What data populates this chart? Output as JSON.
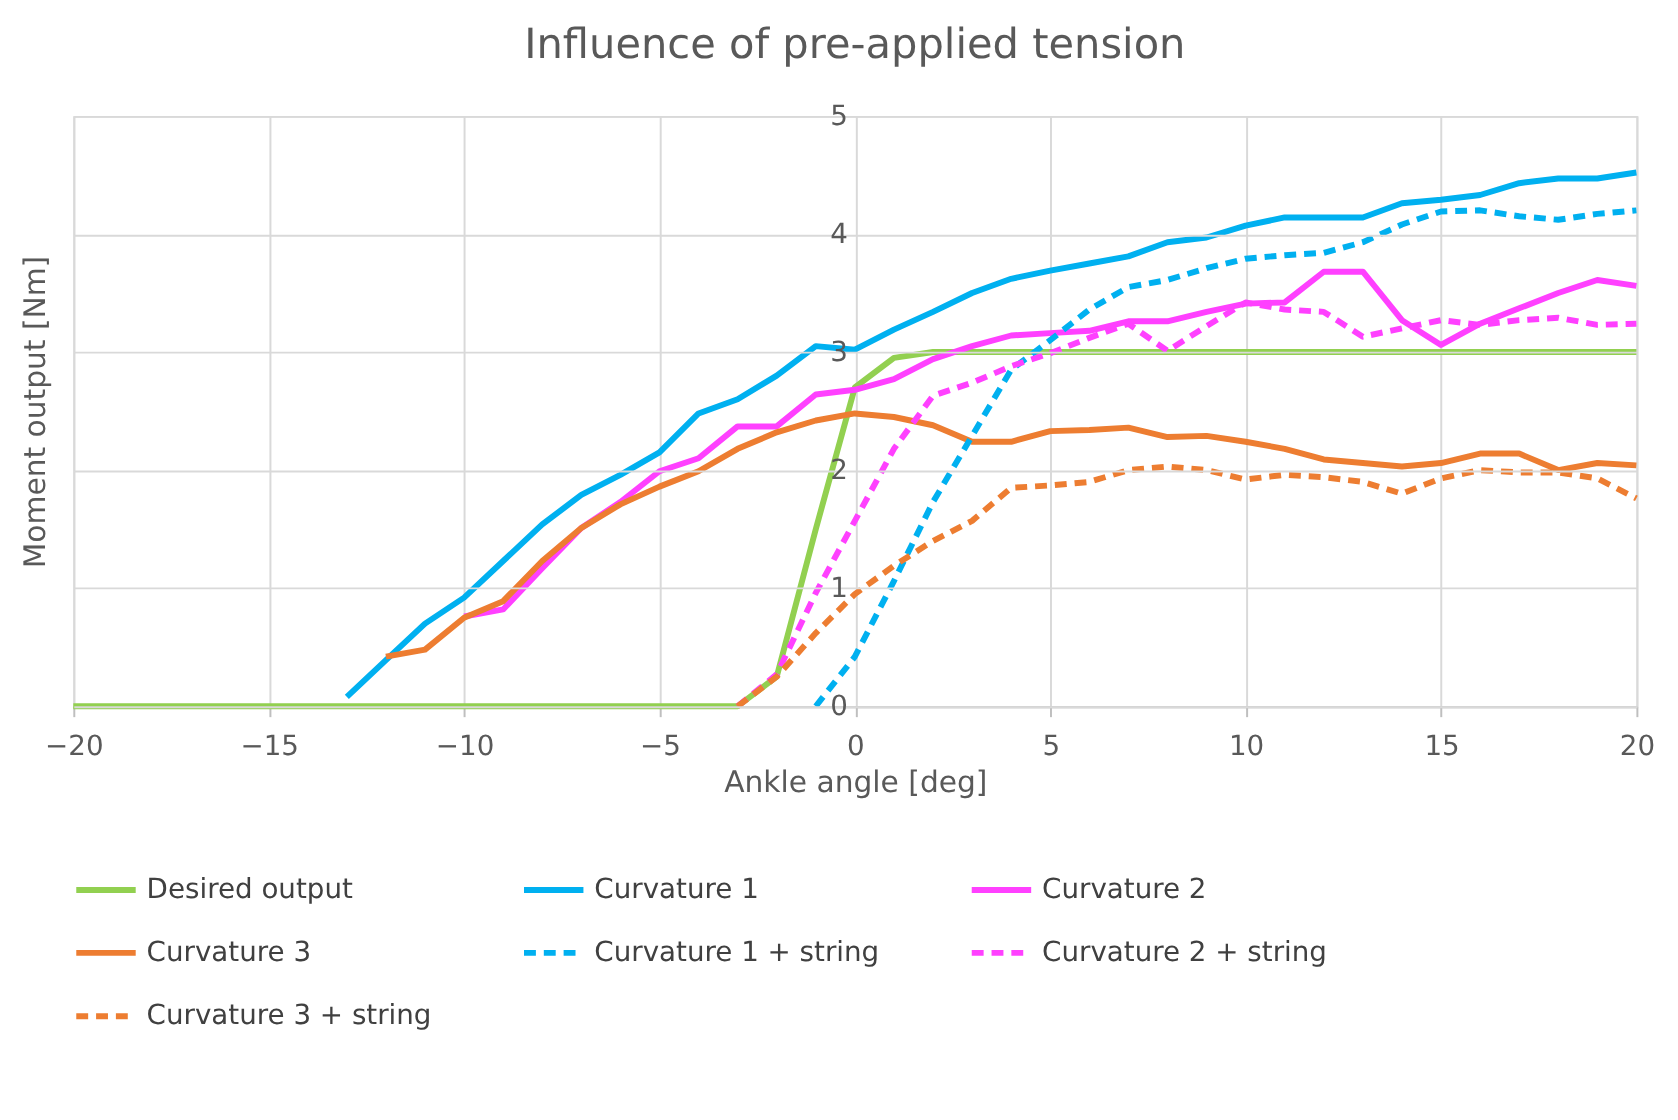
{
  "chart_data": {
    "type": "line",
    "title": "Influence of pre-applied tension",
    "xlabel": "Ankle angle [deg]",
    "ylabel": "Moment output [Nm]",
    "xlim": [
      -20,
      20
    ],
    "xticks": [
      -20,
      -15,
      -10,
      -5,
      0,
      5,
      10,
      15,
      20
    ],
    "ylim": [
      0,
      5
    ],
    "yticks": [
      0,
      1,
      2,
      3,
      4,
      5
    ],
    "grid": true,
    "legend": "bottom",
    "marker": "none",
    "series": [
      {
        "name": "Desired output",
        "color": "#92d050",
        "line_style": "solid",
        "x": [
          -20,
          -3,
          -2,
          -1,
          0,
          1,
          2,
          3,
          20
        ],
        "values": [
          0,
          0,
          0.25,
          1.5,
          2.7,
          2.95,
          3.0,
          3.0,
          3.0
        ]
      },
      {
        "name": "Curvature 1",
        "color": "#00b0f0",
        "line_style": "solid",
        "x": [
          -13,
          -12,
          -11,
          -10,
          -9,
          -8,
          -7,
          -6,
          -5,
          -4,
          -3,
          -2,
          -1,
          0,
          1,
          2,
          3,
          4,
          5,
          6,
          7,
          8,
          9,
          10,
          11,
          12,
          13,
          14,
          15,
          16,
          17,
          18,
          19,
          20
        ],
        "values": [
          0.08,
          0.39,
          0.7,
          0.92,
          1.23,
          1.54,
          1.79,
          1.96,
          2.15,
          2.48,
          2.6,
          2.8,
          3.05,
          3.02,
          3.19,
          3.34,
          3.5,
          3.62,
          3.69,
          3.75,
          3.81,
          3.93,
          3.97,
          4.07,
          4.14,
          4.14,
          4.14,
          4.26,
          4.29,
          4.33,
          4.43,
          4.47,
          4.47,
          4.52
        ]
      },
      {
        "name": "Curvature 2",
        "color": "#ff40ff",
        "line_style": "solid",
        "x": [
          -10,
          -9,
          -8,
          -7,
          -6,
          -5,
          -4,
          -3,
          -2,
          -1,
          0,
          1,
          2,
          3,
          4,
          5,
          6,
          7,
          8,
          9,
          10,
          11,
          12,
          13,
          14,
          15,
          16,
          17,
          18,
          19,
          20
        ],
        "values": [
          0.76,
          0.82,
          1.17,
          1.51,
          1.73,
          1.99,
          2.1,
          2.37,
          2.37,
          2.64,
          2.68,
          2.77,
          2.94,
          3.05,
          3.14,
          3.16,
          3.18,
          3.26,
          3.26,
          3.34,
          3.41,
          3.42,
          3.68,
          3.68,
          3.27,
          3.06,
          3.24,
          3.37,
          3.5,
          3.61,
          3.56
        ]
      },
      {
        "name": "Curvature 3",
        "color": "#ed7d31",
        "line_style": "solid",
        "x": [
          -12,
          -11,
          -10,
          -9,
          -8,
          -7,
          -6,
          -5,
          -4,
          -3,
          -2,
          -1,
          0,
          1,
          2,
          3,
          4,
          5,
          6,
          7,
          8,
          9,
          10,
          11,
          12,
          13,
          14,
          15,
          16,
          17,
          18,
          19,
          20
        ],
        "values": [
          0.42,
          0.48,
          0.75,
          0.89,
          1.23,
          1.51,
          1.71,
          1.86,
          1.99,
          2.18,
          2.32,
          2.42,
          2.48,
          2.45,
          2.38,
          2.24,
          2.24,
          2.33,
          2.34,
          2.36,
          2.28,
          2.29,
          2.24,
          2.18,
          2.09,
          2.06,
          2.03,
          2.06,
          2.14,
          2.14,
          2.0,
          2.06,
          2.04
        ]
      },
      {
        "name": "Curvature 1 + string",
        "color": "#00b0f0",
        "line_style": "dashed",
        "x": [
          -1,
          0,
          1,
          2,
          3,
          4,
          5,
          6,
          7,
          8,
          9,
          10,
          11,
          12,
          13,
          14,
          15,
          16,
          17,
          18,
          19,
          20
        ],
        "values": [
          0.0,
          0.42,
          1.06,
          1.73,
          2.29,
          2.85,
          3.1,
          3.36,
          3.55,
          3.61,
          3.71,
          3.79,
          3.82,
          3.84,
          3.93,
          4.08,
          4.19,
          4.2,
          4.15,
          4.12,
          4.17,
          4.2
        ]
      },
      {
        "name": "Curvature 2 + string",
        "color": "#ff40ff",
        "line_style": "dashed",
        "x": [
          -3,
          -2,
          -1,
          0,
          1,
          2,
          3,
          4,
          5,
          6,
          7,
          8,
          9,
          10,
          11,
          12,
          13,
          14,
          15,
          16,
          17,
          18,
          19,
          20
        ],
        "values": [
          0.0,
          0.27,
          0.96,
          1.57,
          2.18,
          2.63,
          2.74,
          2.88,
          2.99,
          3.12,
          3.24,
          3.01,
          3.22,
          3.42,
          3.36,
          3.34,
          3.13,
          3.2,
          3.27,
          3.23,
          3.27,
          3.29,
          3.23,
          3.24
        ]
      },
      {
        "name": "Curvature 3 + string",
        "color": "#ed7d31",
        "line_style": "dashed",
        "x": [
          -3,
          -2,
          -1,
          0,
          1,
          2,
          3,
          4,
          5,
          6,
          7,
          8,
          9,
          10,
          11,
          12,
          13,
          14,
          15,
          16,
          17,
          18,
          19,
          20
        ],
        "values": [
          0.0,
          0.25,
          0.62,
          0.95,
          1.19,
          1.4,
          1.57,
          1.85,
          1.87,
          1.9,
          2.0,
          2.03,
          2.0,
          1.92,
          1.96,
          1.94,
          1.9,
          1.8,
          1.93,
          2.0,
          1.98,
          1.98,
          1.93,
          1.76
        ]
      }
    ]
  }
}
